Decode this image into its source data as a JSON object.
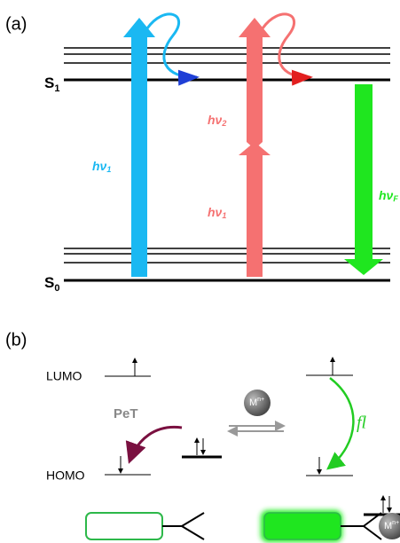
{
  "panel_a": {
    "label": "(a)",
    "levels": [
      {
        "base": "S",
        "sub": "1"
      },
      {
        "base": "S",
        "sub": "0"
      }
    ],
    "excitations": [
      {
        "base": "hν",
        "sub": "1"
      },
      {
        "base": "hν",
        "sub": "2"
      },
      {
        "base": "hν",
        "sub": "1"
      },
      {
        "base": "hν",
        "sub": "F"
      }
    ]
  },
  "panel_b": {
    "label": "(b)",
    "lumo": "LUMO",
    "homo": "HOMO",
    "pet": "PeT",
    "fl": "fl",
    "metal": {
      "base": "M",
      "sup": "n+"
    }
  }
}
